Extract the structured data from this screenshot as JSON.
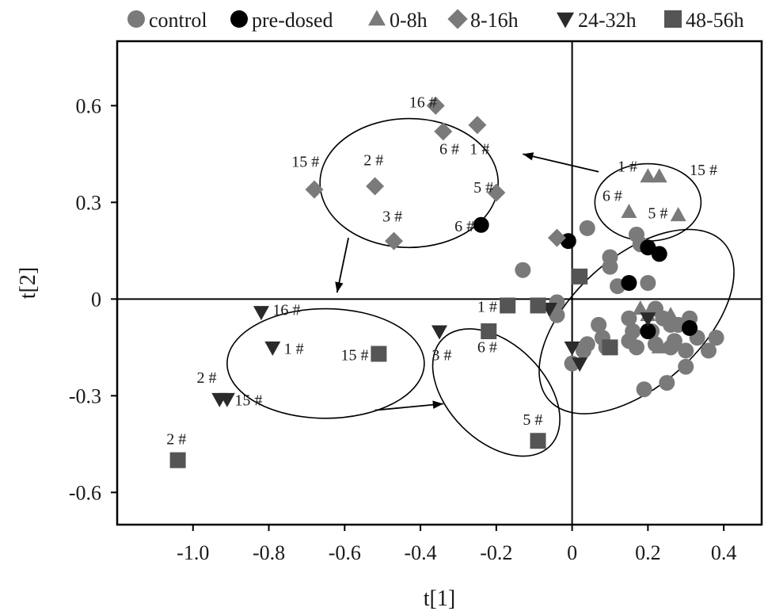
{
  "chart_data": {
    "type": "scatter",
    "xlabel": "t[1]",
    "ylabel": "t[2]",
    "xlim": [
      -1.2,
      0.5
    ],
    "ylim": [
      -0.7,
      0.8
    ],
    "xticks": [
      "-1.0",
      "-0.8",
      "-0.6",
      "-0.4",
      "-0.2",
      "0",
      "0.2",
      "0.4"
    ],
    "xtick_values": [
      -1.0,
      -0.8,
      -0.6,
      -0.4,
      -0.2,
      0,
      0.2,
      0.4
    ],
    "yticks": [
      "0.6",
      "0.3",
      "0",
      "-0.3",
      "-0.6"
    ],
    "ytick_values": [
      0.6,
      0.3,
      0,
      -0.3,
      -0.6
    ],
    "grid": false,
    "reference_lines": {
      "x": 0,
      "y": 0
    },
    "legend_position": "top",
    "legend": [
      {
        "label": "control",
        "marker": "circle",
        "color": "#7a7a7a"
      },
      {
        "label": "pre-dosed",
        "marker": "circle",
        "color": "#000000"
      },
      {
        "label": "0-8h",
        "marker": "triangle-up",
        "color": "#7a7a7a"
      },
      {
        "label": "8-16h",
        "marker": "diamond",
        "color": "#7a7a7a"
      },
      {
        "label": "24-32h",
        "marker": "triangle-down",
        "color": "#2a2a2a"
      },
      {
        "label": "48-56h",
        "marker": "square",
        "color": "#555555"
      }
    ],
    "series": [
      {
        "name": "control",
        "marker": "circle",
        "color": "#7a7a7a",
        "points": [
          [
            0.04,
            0.22
          ],
          [
            0.17,
            0.2
          ],
          [
            0.18,
            0.17
          ],
          [
            0.1,
            0.13
          ],
          [
            0.1,
            0.1
          ],
          [
            -0.13,
            0.09
          ],
          [
            0.2,
            0.05
          ],
          [
            0.12,
            0.04
          ],
          [
            0.07,
            -0.08
          ],
          [
            0.15,
            -0.06
          ],
          [
            0.16,
            -0.1
          ],
          [
            0.24,
            -0.06
          ],
          [
            0.26,
            -0.08
          ],
          [
            0.28,
            -0.08
          ],
          [
            0.31,
            -0.06
          ],
          [
            0.33,
            -0.12
          ],
          [
            0.36,
            -0.16
          ],
          [
            0.38,
            -0.12
          ],
          [
            0.04,
            -0.14
          ],
          [
            0.08,
            -0.12
          ],
          [
            0.09,
            -0.15
          ],
          [
            0.15,
            -0.13
          ],
          [
            0.17,
            -0.15
          ],
          [
            0.22,
            -0.14
          ],
          [
            0.26,
            -0.15
          ],
          [
            0.3,
            -0.16
          ],
          [
            0.3,
            -0.21
          ],
          [
            0.19,
            -0.28
          ],
          [
            0.25,
            -0.26
          ],
          [
            0.0,
            -0.2
          ],
          [
            0.03,
            -0.16
          ],
          [
            -0.04,
            -0.05
          ],
          [
            -0.04,
            -0.01
          ],
          [
            0.21,
            -0.1
          ],
          [
            0.27,
            -0.13
          ],
          [
            0.22,
            -0.03
          ]
        ]
      },
      {
        "name": "pre-dosed",
        "marker": "circle",
        "color": "#000000",
        "points": [
          [
            -0.24,
            0.23
          ],
          [
            -0.01,
            0.18
          ],
          [
            0.2,
            0.16
          ],
          [
            0.23,
            0.14
          ],
          [
            0.15,
            0.05
          ],
          [
            0.31,
            -0.09
          ],
          [
            0.2,
            -0.1
          ]
        ]
      },
      {
        "name": "0-8h",
        "marker": "triangle-up",
        "color": "#7a7a7a",
        "points": [
          [
            0.2,
            0.38
          ],
          [
            0.23,
            0.38
          ],
          [
            0.15,
            0.27
          ],
          [
            0.28,
            0.26
          ],
          [
            0.18,
            -0.03
          ],
          [
            0.2,
            -0.05
          ],
          [
            0.26,
            -0.05
          ],
          [
            0.23,
            -0.15
          ]
        ]
      },
      {
        "name": "8-16h",
        "marker": "diamond",
        "color": "#7a7a7a",
        "points": [
          [
            -0.36,
            0.6
          ],
          [
            -0.34,
            0.52
          ],
          [
            -0.25,
            0.54
          ],
          [
            -0.2,
            0.33
          ],
          [
            -0.52,
            0.35
          ],
          [
            -0.68,
            0.34
          ],
          [
            -0.47,
            0.18
          ],
          [
            -0.04,
            0.19
          ]
        ]
      },
      {
        "name": "24-32h",
        "marker": "triangle-down",
        "color": "#2a2a2a",
        "points": [
          [
            -0.82,
            -0.04
          ],
          [
            -0.79,
            -0.15
          ],
          [
            -0.93,
            -0.31
          ],
          [
            -0.91,
            -0.31
          ],
          [
            -0.35,
            -0.1
          ],
          [
            -0.06,
            -0.03
          ],
          [
            0.0,
            -0.15
          ],
          [
            0.02,
            -0.2
          ],
          [
            0.2,
            -0.06
          ]
        ]
      },
      {
        "name": "48-56h",
        "marker": "square",
        "color": "#555555",
        "points": [
          [
            -1.04,
            -0.5
          ],
          [
            -0.51,
            -0.17
          ],
          [
            -0.22,
            -0.1
          ],
          [
            -0.17,
            -0.02
          ],
          [
            -0.09,
            -0.02
          ],
          [
            0.02,
            0.07
          ],
          [
            0.1,
            -0.15
          ],
          [
            -0.09,
            -0.44
          ]
        ]
      }
    ],
    "annotations": [
      {
        "text": "16 #",
        "x": -0.43,
        "y": 0.595
      },
      {
        "text": "6  #",
        "x": -0.35,
        "y": 0.45
      },
      {
        "text": "1 #",
        "x": -0.27,
        "y": 0.45
      },
      {
        "text": "2 #",
        "x": -0.55,
        "y": 0.415
      },
      {
        "text": "15 #",
        "x": -0.74,
        "y": 0.41
      },
      {
        "text": "5 #",
        "x": -0.26,
        "y": 0.33
      },
      {
        "text": "3 #",
        "x": -0.5,
        "y": 0.24
      },
      {
        "text": "6 #",
        "x": -0.31,
        "y": 0.21
      },
      {
        "text": "1 #",
        "x": 0.12,
        "y": 0.395
      },
      {
        "text": "15 #",
        "x": 0.31,
        "y": 0.385
      },
      {
        "text": "6 #",
        "x": 0.08,
        "y": 0.305
      },
      {
        "text": "5 #",
        "x": 0.2,
        "y": 0.25
      },
      {
        "text": "16 #",
        "x": -0.79,
        "y": -0.05
      },
      {
        "text": "1 #",
        "x": -0.76,
        "y": -0.17
      },
      {
        "text": "15 #",
        "x": -0.61,
        "y": -0.19
      },
      {
        "text": "2 #",
        "x": -0.99,
        "y": -0.26
      },
      {
        "text": "15 #",
        "x": -0.89,
        "y": -0.33
      },
      {
        "text": "1 #",
        "x": -0.25,
        "y": -0.04
      },
      {
        "text": "6 #",
        "x": -0.25,
        "y": -0.165
      },
      {
        "text": "3 #",
        "x": -0.37,
        "y": -0.19
      },
      {
        "text": "5 #",
        "x": -0.13,
        "y": -0.39
      },
      {
        "text": "2 #",
        "x": -1.07,
        "y": -0.45
      }
    ],
    "ellipses": [
      {
        "cx": -0.43,
        "cy": 0.36,
        "rx": 0.235,
        "ry": 0.2,
        "angle": 0
      },
      {
        "cx": 0.2,
        "cy": 0.3,
        "rx": 0.14,
        "ry": 0.12,
        "angle": 0
      },
      {
        "cx": -0.65,
        "cy": -0.2,
        "rx": 0.26,
        "ry": 0.17,
        "angle": 0
      },
      {
        "cx": -0.2,
        "cy": -0.29,
        "rx": 0.2,
        "ry": 0.15,
        "angle": 45
      },
      {
        "cx": 0.17,
        "cy": -0.07,
        "rx": 0.31,
        "ry": 0.2,
        "angle": -42
      }
    ],
    "arrows": [
      {
        "from": [
          0.07,
          0.395
        ],
        "to": [
          -0.13,
          0.45
        ]
      },
      {
        "from": [
          -0.59,
          0.19
        ],
        "to": [
          -0.62,
          0.02
        ]
      },
      {
        "from": [
          -0.52,
          -0.345
        ],
        "to": [
          -0.34,
          -0.325
        ]
      }
    ]
  }
}
